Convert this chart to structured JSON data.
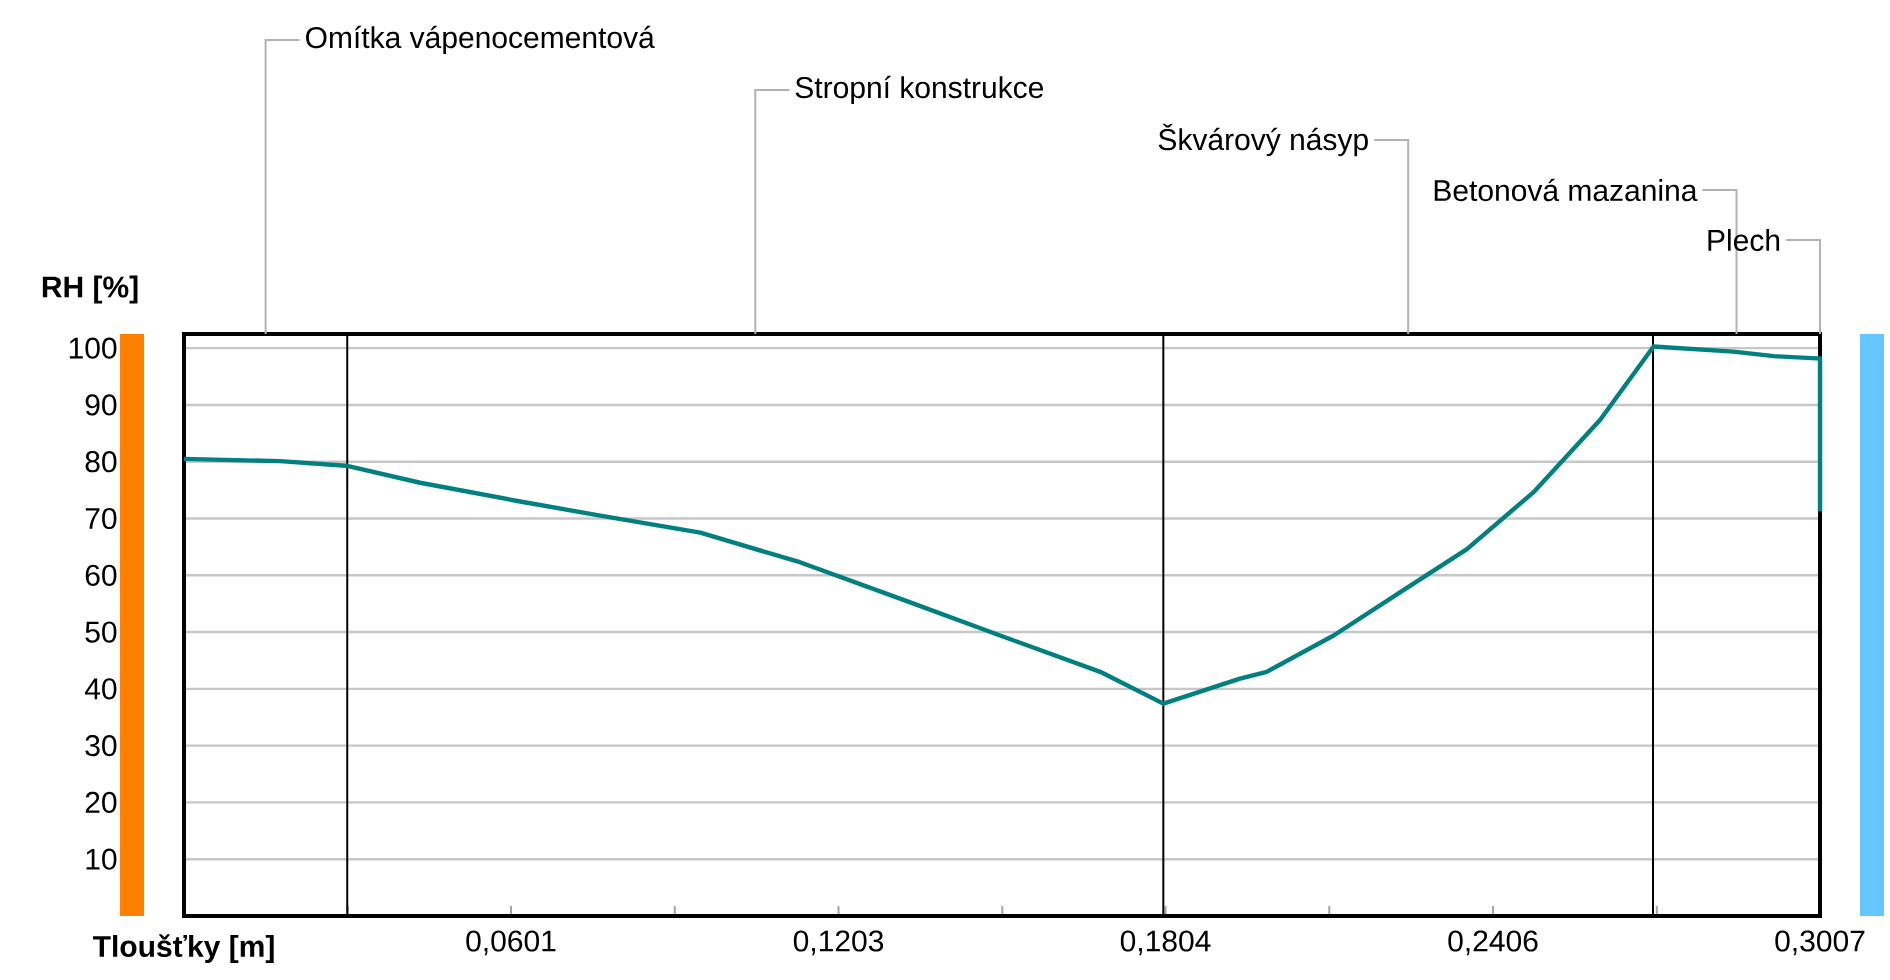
{
  "chart_data": {
    "type": "line",
    "xlabel": "Tloušťky [m]",
    "ylabel": "RH [%]",
    "xlim": [
      0,
      0.3007
    ],
    "ylim": [
      0,
      102.5
    ],
    "xticks": [
      {
        "value": 0.0301,
        "label": null
      },
      {
        "value": 0.0601,
        "label": "0,0601"
      },
      {
        "value": 0.0902,
        "label": null
      },
      {
        "value": 0.1203,
        "label": "0,1203"
      },
      {
        "value": 0.1504,
        "label": null
      },
      {
        "value": 0.1804,
        "label": "0,1804"
      },
      {
        "value": 0.2105,
        "label": null
      },
      {
        "value": 0.2406,
        "label": "0,2406"
      },
      {
        "value": 0.2707,
        "label": null
      },
      {
        "value": 0.3007,
        "label": "0,3007"
      }
    ],
    "yticks": [
      10,
      20,
      30,
      40,
      50,
      60,
      70,
      80,
      90,
      100
    ],
    "grid": "y",
    "marker": "none",
    "line_style": "solid",
    "series": [
      {
        "color": "#008080",
        "x": [
          0,
          0.0176,
          0.0298,
          0.0434,
          0.0618,
          0.0765,
          0.0949,
          0.1132,
          0.1316,
          0.15,
          0.1684,
          0.18,
          0.1941,
          0.199,
          0.2113,
          0.2235,
          0.2358,
          0.248,
          0.2603,
          0.2701,
          0.2848,
          0.2922,
          0.3001,
          0.3007,
          0.3007
        ],
        "values": [
          80.5,
          80.1,
          79.3,
          76.3,
          73.0,
          70.5,
          67.5,
          62.3,
          55.9,
          49.4,
          43.0,
          37.4,
          41.8,
          43.0,
          49.4,
          57.0,
          64.6,
          74.6,
          87.4,
          100.3,
          99.4,
          98.6,
          98.2,
          98.2,
          71.3
        ]
      }
    ],
    "ref_lines": [
      {
        "axis": "x",
        "value": 0.03,
        "color": "#000000"
      },
      {
        "axis": "x",
        "value": 0.18,
        "color": "#000000"
      },
      {
        "axis": "x",
        "value": 0.27,
        "color": "#000000"
      }
    ],
    "annotations": [
      "Omítka vápenocementová",
      "Stropní konstrukce",
      "Škvárový násyp",
      "Betonová mazanina",
      "Plech"
    ]
  }
}
